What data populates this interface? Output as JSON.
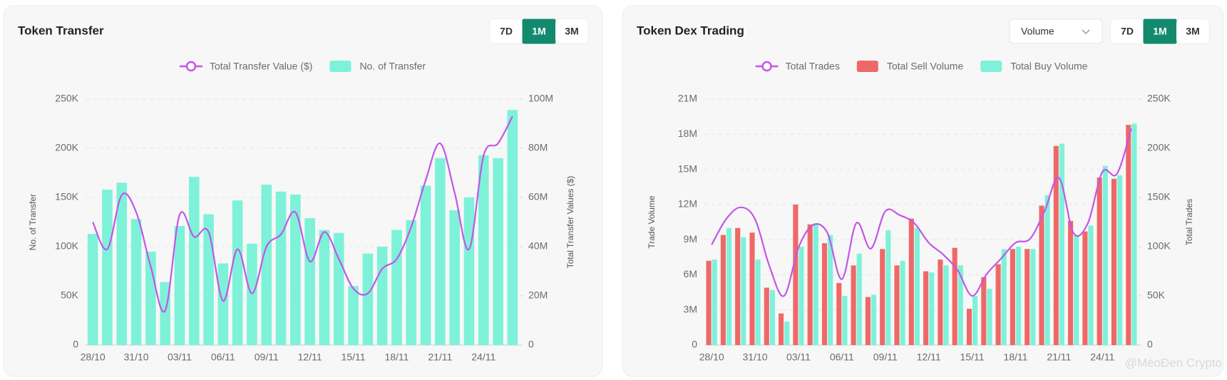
{
  "chart_data": [
    {
      "type": "bar",
      "title": "Token Transfer",
      "controls": [
        "7D",
        "1M",
        "3M"
      ],
      "active_control": "1M",
      "categories": [
        "28/10",
        null,
        null,
        "31/10",
        null,
        null,
        "03/11",
        null,
        null,
        "06/11",
        null,
        null,
        "09/11",
        null,
        null,
        "12/11",
        null,
        null,
        "15/11",
        null,
        null,
        "18/11",
        null,
        null,
        "21/11",
        null,
        null,
        "24/11",
        null,
        null
      ],
      "series": [
        {
          "name": "Total Transfer Value ($)",
          "type": "line",
          "axis": "y2",
          "color": "#c455e8",
          "values": [
            50000000,
            39000000,
            61000000,
            54000000,
            32000000,
            14000000,
            53000000,
            44000000,
            46000000,
            18000000,
            39000000,
            21000000,
            40000000,
            45000000,
            54000000,
            34000000,
            46000000,
            35000000,
            23000000,
            21000000,
            31000000,
            35000000,
            48000000,
            67000000,
            82000000,
            62000000,
            39000000,
            77000000,
            82000000,
            93000000
          ]
        },
        {
          "name": "No. of Transfer",
          "type": "bar",
          "color": "#7ef2d9",
          "values": [
            113000,
            158000,
            165000,
            128000,
            95000,
            64000,
            121000,
            171000,
            133000,
            83000,
            147000,
            103000,
            163000,
            156000,
            153000,
            129000,
            117000,
            114000,
            60000,
            93000,
            100000,
            117000,
            127000,
            162000,
            190000,
            137000,
            150000,
            193000,
            190000,
            239000
          ]
        }
      ],
      "ylabel": "No. of Transfer",
      "y2label": "Total Transfer Values ($)",
      "ylim": [
        0,
        250000
      ],
      "yticks": [
        0,
        {
          "value": 50000,
          "label": "50K"
        },
        {
          "value": 100000,
          "label": "100K"
        },
        {
          "value": 150000,
          "label": "150K"
        },
        {
          "value": 200000,
          "label": "200K"
        },
        {
          "value": 250000,
          "label": "250K"
        }
      ],
      "y2lim": [
        0,
        100000000
      ],
      "y2ticks": [
        0,
        {
          "value": 20000000,
          "label": "20M"
        },
        {
          "value": 40000000,
          "label": "40M"
        },
        {
          "value": 60000000,
          "label": "60M"
        },
        {
          "value": 80000000,
          "label": "80M"
        },
        {
          "value": 100000000,
          "label": "100M"
        }
      ],
      "grid": true,
      "legend": "top"
    },
    {
      "type": "bar",
      "title": "Token Dex Trading",
      "dropdown": "Volume",
      "controls": [
        "7D",
        "1M",
        "3M"
      ],
      "active_control": "1M",
      "categories": [
        "28/10",
        null,
        null,
        "31/10",
        null,
        null,
        "03/11",
        null,
        null,
        "06/11",
        null,
        null,
        "09/11",
        null,
        null,
        "12/11",
        null,
        null,
        "15/11",
        null,
        null,
        "18/11",
        null,
        null,
        "21/11",
        null,
        null,
        "24/11",
        null,
        null
      ],
      "series": [
        {
          "name": "Total Trades",
          "type": "line",
          "axis": "y2",
          "color": "#c455e8",
          "values": [
            102000,
            128000,
            140000,
            128000,
            80000,
            50000,
            99000,
            122000,
            114000,
            67000,
            124000,
            98000,
            136000,
            132000,
            124000,
            104000,
            92000,
            76000,
            50000,
            72000,
            88000,
            104000,
            108000,
            136000,
            170000,
            114000,
            124000,
            176000,
            174000,
            220000
          ]
        },
        {
          "name": "Total Sell Volume",
          "type": "bar",
          "color": "#ef6868",
          "values": [
            7200000,
            9400000,
            10000000,
            9600000,
            4900000,
            2700000,
            12000000,
            10300000,
            8700000,
            5300000,
            6800000,
            4100000,
            8200000,
            6800000,
            10800000,
            6300000,
            7300000,
            8300000,
            3100000,
            5800000,
            6900000,
            8200000,
            8200000,
            11900000,
            17000000,
            10600000,
            9700000,
            14300000,
            14200000,
            18800000
          ]
        },
        {
          "name": "Total Buy Volume",
          "type": "bar",
          "color": "#7ef2d9",
          "values": [
            7300000,
            10000000,
            9200000,
            7300000,
            4700000,
            2000000,
            8400000,
            10400000,
            9400000,
            4200000,
            7800000,
            4300000,
            9800000,
            7200000,
            10000000,
            6200000,
            6800000,
            6800000,
            4200000,
            4800000,
            8200000,
            8400000,
            8200000,
            12800000,
            17200000,
            9400000,
            10200000,
            15300000,
            14500000,
            18900000
          ]
        }
      ],
      "ylabel": "Trade Volume",
      "y2label": "Total Trades",
      "ylim": [
        0,
        21000000
      ],
      "yticks": [
        0,
        {
          "value": 3000000,
          "label": "3M"
        },
        {
          "value": 6000000,
          "label": "6M"
        },
        {
          "value": 9000000,
          "label": "9M"
        },
        {
          "value": 12000000,
          "label": "12M"
        },
        {
          "value": 15000000,
          "label": "15M"
        },
        {
          "value": 18000000,
          "label": "18M"
        },
        {
          "value": 21000000,
          "label": "21M"
        }
      ],
      "y2lim": [
        0,
        250000
      ],
      "y2ticks": [
        0,
        {
          "value": 50000,
          "label": "50K"
        },
        {
          "value": 100000,
          "label": "100K"
        },
        {
          "value": 150000,
          "label": "150K"
        },
        {
          "value": 200000,
          "label": "200K"
        },
        {
          "value": 250000,
          "label": "250K"
        }
      ],
      "grid": true,
      "legend": "top"
    }
  ],
  "watermark": "@MèoĐen Crypto"
}
